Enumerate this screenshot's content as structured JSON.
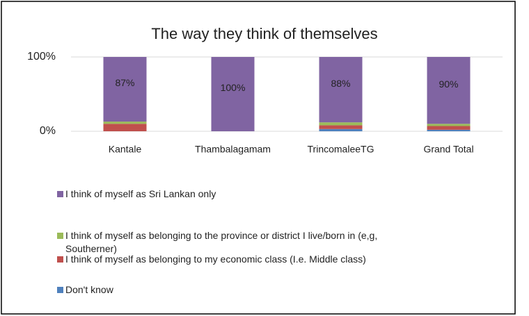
{
  "chart_data": {
    "type": "stacked_bar",
    "title": "The way they think of themselves",
    "categories": [
      "Kantale",
      "Thambalagamam",
      "TrincomaleeTG",
      "Grand Total"
    ],
    "series": [
      {
        "name": "Don't know",
        "color": "#4f81bd",
        "values": [
          0,
          0,
          3,
          2
        ]
      },
      {
        "name": "I think of myself as belonging to my economic class (I.e. Middle class)",
        "color": "#c0504d",
        "values": [
          10,
          0,
          5,
          5
        ]
      },
      {
        "name": "I think of myself as belonging to the province or district I live/born in (e,g, Southerner)",
        "color": "#9bbb59",
        "values": [
          3,
          0,
          4,
          3
        ]
      },
      {
        "name": "I think of myself as Sri Lankan only",
        "color": "#8064a2",
        "values": [
          87,
          100,
          88,
          90
        ],
        "value_labels": [
          "87%",
          "100%",
          "88%",
          "90%"
        ]
      }
    ],
    "ylim": [
      0,
      100
    ],
    "yticks": [
      {
        "value": 0,
        "label": "0%"
      },
      {
        "value": 100,
        "label": "100%"
      }
    ],
    "grid": true
  }
}
